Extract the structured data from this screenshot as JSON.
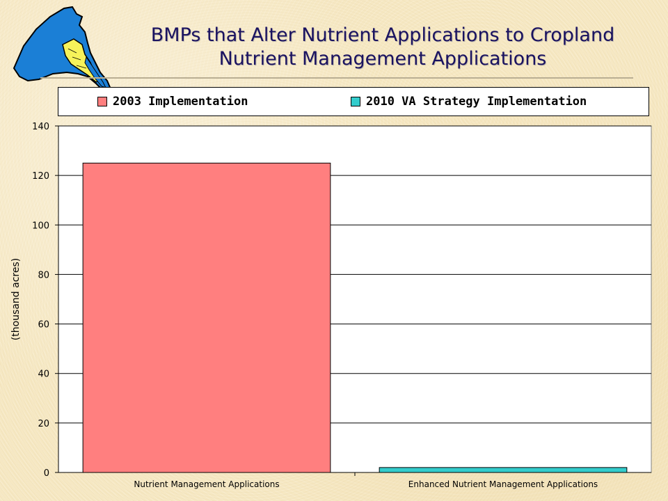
{
  "title_lines": [
    "BMPs that Alter Nutrient Applications to Cropland",
    "Nutrient Management Applications"
  ],
  "colors": {
    "series_2003": "#ff7f7f",
    "series_2010": "#33cccc",
    "title": "#1a1260",
    "map_water": "#1b7fd6",
    "map_region": "#f7f25a"
  },
  "logo": {
    "icon": "chesapeake-watershed-map-icon"
  },
  "chart_data": {
    "type": "bar",
    "categories": [
      "Nutrient Management Applications",
      "Enhanced Nutrient Management Applications"
    ],
    "series": [
      {
        "name": "2003 Implementation",
        "values": [
          125,
          null
        ]
      },
      {
        "name": "2010 VA Strategy Implementation",
        "values": [
          null,
          2
        ]
      }
    ],
    "xlabel": "",
    "ylabel": "(thousand acres)",
    "ylim": [
      0,
      140
    ],
    "yticks": [
      0,
      20,
      40,
      60,
      80,
      100,
      120,
      140
    ],
    "grid": true,
    "legend_position": "top"
  }
}
